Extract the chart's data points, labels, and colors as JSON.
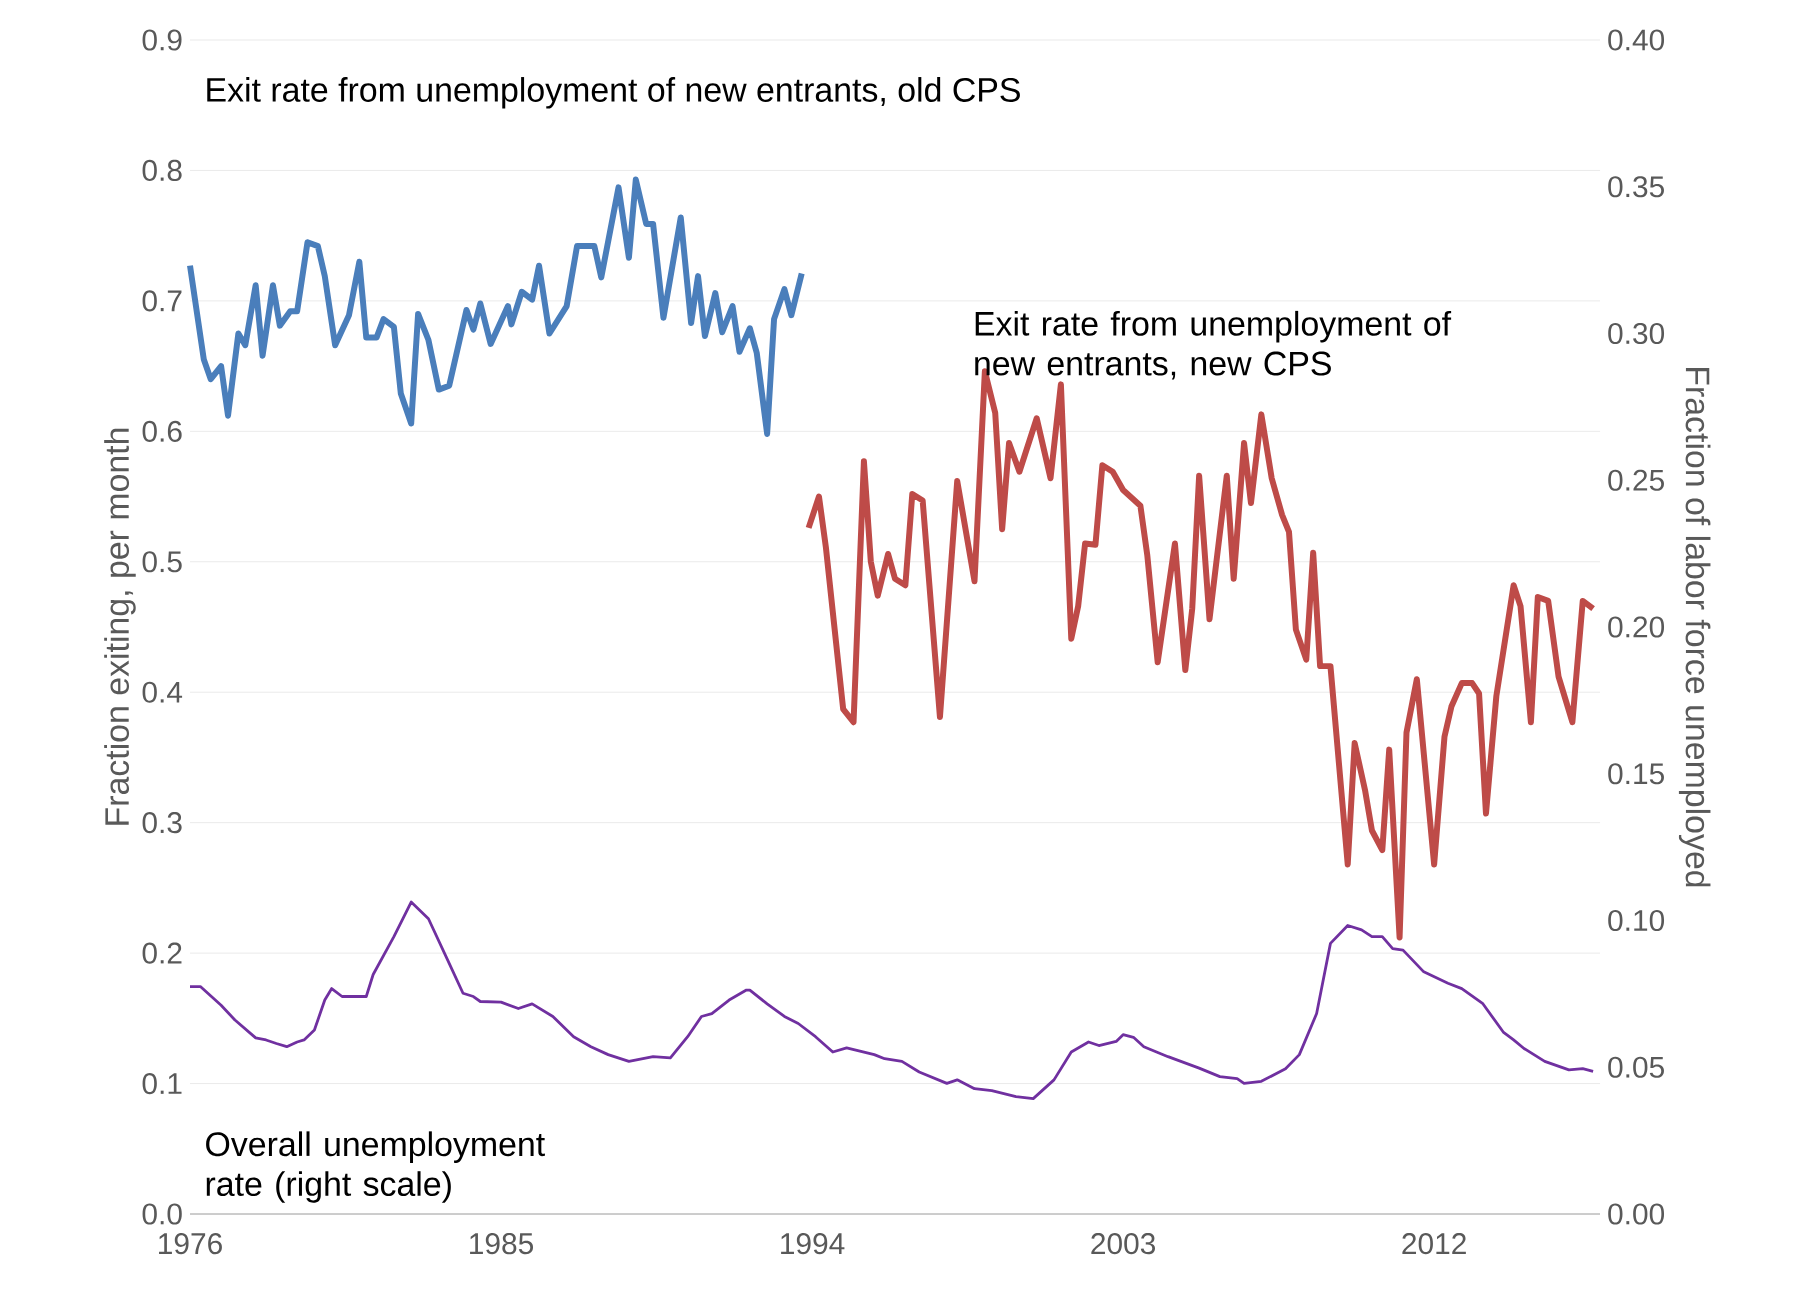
{
  "chart_data": {
    "type": "line",
    "ylabel": "Fraction exiting, per month",
    "y2label": "Fraction of labor force unemployed",
    "xlim": [
      1976,
      2016.8
    ],
    "xticks": [
      1976,
      1985,
      1994,
      2003,
      2012
    ],
    "ylim": [
      0,
      0.9
    ],
    "yticks": [
      {
        "value": 0,
        "label": "0.0"
      },
      {
        "value": 0.1,
        "label": "0.1"
      },
      {
        "value": 0.2,
        "label": "0.2"
      },
      {
        "value": 0.3,
        "label": "0.3"
      },
      {
        "value": 0.4,
        "label": "0.4"
      },
      {
        "value": 0.5,
        "label": "0.5"
      },
      {
        "value": 0.6,
        "label": "0.6"
      },
      {
        "value": 0.7,
        "label": "0.7"
      },
      {
        "value": 0.8,
        "label": "0.8"
      },
      {
        "value": 0.9,
        "label": "0.9"
      }
    ],
    "y2lim": [
      0,
      0.4
    ],
    "y2ticks": [
      {
        "value": 0,
        "label": "0.00"
      },
      {
        "value": 0.05,
        "label": "0.05"
      },
      {
        "value": 0.1,
        "label": "0.10"
      },
      {
        "value": 0.15,
        "label": "0.15"
      },
      {
        "value": 0.2,
        "label": "0.20"
      },
      {
        "value": 0.25,
        "label": "0.25"
      },
      {
        "value": 0.3,
        "label": "0.30"
      },
      {
        "value": 0.35,
        "label": "0.35"
      },
      {
        "value": 0.4,
        "label": "0.40"
      }
    ],
    "grid": "y",
    "legend": false,
    "marker": "none",
    "line_style": "solid",
    "series": [
      {
        "name": "Exit rate from unemployment of new entrants, old CPS",
        "color": "#4a7ebb",
        "x": [
          1976.0,
          1976.4,
          1976.6,
          1976.9,
          1977.1,
          1977.4,
          1977.6,
          1977.9,
          1978.1,
          1978.4,
          1978.6,
          1978.9,
          1979.1,
          1979.4,
          1979.7,
          1979.9,
          1980.2,
          1980.6,
          1980.9,
          1981.1,
          1981.4,
          1981.6,
          1981.9,
          1982.1,
          1982.4,
          1982.6,
          1982.9,
          1983.2,
          1983.5,
          1984.0,
          1984.2,
          1984.4,
          1984.7,
          1985.2,
          1985.3,
          1985.6,
          1985.9,
          1986.1,
          1986.4,
          1986.9,
          1987.2,
          1987.7,
          1987.9,
          1988.4,
          1988.7,
          1988.9,
          1989.2,
          1989.4,
          1989.7,
          1990.2,
          1990.5,
          1990.7,
          1990.9,
          1991.2,
          1991.4,
          1991.7,
          1991.9,
          1992.2,
          1992.4,
          1992.7,
          1992.9,
          1993.2,
          1993.4,
          1993.7
        ],
        "values": [
          0.727,
          0.655,
          0.64,
          0.65,
          0.612,
          0.675,
          0.666,
          0.712,
          0.658,
          0.712,
          0.681,
          0.692,
          0.692,
          0.745,
          0.742,
          0.719,
          0.666,
          0.689,
          0.73,
          0.672,
          0.672,
          0.686,
          0.68,
          0.629,
          0.606,
          0.69,
          0.67,
          0.632,
          0.635,
          0.693,
          0.678,
          0.698,
          0.667,
          0.696,
          0.682,
          0.707,
          0.701,
          0.727,
          0.675,
          0.696,
          0.742,
          0.742,
          0.718,
          0.787,
          0.733,
          0.793,
          0.759,
          0.759,
          0.687,
          0.764,
          0.683,
          0.719,
          0.673,
          0.706,
          0.676,
          0.696,
          0.661,
          0.679,
          0.66,
          0.598,
          0.686,
          0.709,
          0.689,
          0.721
        ]
      },
      {
        "name": "Exit rate from unemployment of new entrants, new CPS",
        "color": "#be4b48",
        "x": [
          1993.9,
          1994.2,
          1994.4,
          1994.9,
          1995.2,
          1995.5,
          1995.7,
          1995.9,
          1996.2,
          1996.4,
          1996.7,
          1996.9,
          1997.2,
          1997.7,
          1998.2,
          1998.7,
          1999.0,
          1999.3,
          1999.5,
          1999.7,
          2000.0,
          2000.5,
          2000.9,
          2001.2,
          2001.5,
          2001.7,
          2001.9,
          2002.2,
          2002.4,
          2002.7,
          2003.0,
          2003.5,
          2003.7,
          2004.0,
          2004.5,
          2004.8,
          2005.0,
          2005.2,
          2005.5,
          2006.0,
          2006.2,
          2006.5,
          2006.7,
          2007.0,
          2007.3,
          2007.6,
          2007.8,
          2008.0,
          2008.3,
          2008.5,
          2008.7,
          2009.0,
          2009.5,
          2009.7,
          2010.0,
          2010.2,
          2010.5,
          2010.7,
          2011.0,
          2011.2,
          2011.5,
          2012.0,
          2012.3,
          2012.5,
          2012.8,
          2013.1,
          2013.3,
          2013.5,
          2013.8,
          2014.3,
          2014.5,
          2014.8,
          2015.0,
          2015.3,
          2015.6,
          2016.0,
          2016.3,
          2016.6
        ],
        "values": [
          0.526,
          0.55,
          0.511,
          0.387,
          0.377,
          0.577,
          0.5,
          0.474,
          0.506,
          0.487,
          0.482,
          0.552,
          0.547,
          0.381,
          0.562,
          0.485,
          0.646,
          0.614,
          0.525,
          0.591,
          0.569,
          0.61,
          0.564,
          0.636,
          0.441,
          0.466,
          0.514,
          0.513,
          0.574,
          0.569,
          0.555,
          0.543,
          0.505,
          0.423,
          0.514,
          0.417,
          0.464,
          0.566,
          0.456,
          0.566,
          0.487,
          0.591,
          0.545,
          0.613,
          0.564,
          0.536,
          0.523,
          0.448,
          0.425,
          0.507,
          0.42,
          0.42,
          0.268,
          0.361,
          0.325,
          0.294,
          0.279,
          0.356,
          0.212,
          0.369,
          0.41,
          0.268,
          0.366,
          0.389,
          0.407,
          0.407,
          0.399,
          0.307,
          0.397,
          0.482,
          0.466,
          0.377,
          0.473,
          0.47,
          0.412,
          0.377,
          0.47,
          0.464
        ]
      },
      {
        "name": "Overall unemployment rate (right scale)",
        "color": "#7030a0",
        "axis": "y2",
        "x": [
          1976.0,
          1976.3,
          1976.9,
          1977.3,
          1977.9,
          1978.2,
          1978.5,
          1978.8,
          1979.1,
          1979.3,
          1979.6,
          1979.9,
          1980.1,
          1980.4,
          1981.1,
          1981.3,
          1981.9,
          1982.4,
          1982.9,
          1983.5,
          1983.9,
          1984.2,
          1984.4,
          1985.0,
          1985.5,
          1985.9,
          1986.5,
          1987.1,
          1987.6,
          1988.1,
          1988.7,
          1989.4,
          1989.9,
          1990.4,
          1990.8,
          1991.1,
          1991.6,
          1992.1,
          1992.2,
          1992.7,
          1993.2,
          1993.6,
          1994.1,
          1994.6,
          1995.0,
          1995.8,
          1996.1,
          1996.6,
          1997.1,
          1997.9,
          1998.2,
          1998.7,
          1999.2,
          1999.9,
          2000.4,
          2001.0,
          2001.5,
          2002.0,
          2002.3,
          2002.8,
          2003.0,
          2003.3,
          2003.6,
          2004.3,
          2005.2,
          2005.8,
          2006.3,
          2006.5,
          2007.0,
          2007.7,
          2008.1,
          2008.6,
          2009.0,
          2009.5,
          2009.9,
          2010.2,
          2010.5,
          2010.8,
          2011.1,
          2011.7,
          2012.4,
          2012.8,
          2013.4,
          2014.0,
          2014.3,
          2014.6,
          2015.2,
          2015.9,
          2016.3,
          2016.6
        ],
        "values": [
          0.0775,
          0.0775,
          0.0711,
          0.0661,
          0.06,
          0.0593,
          0.0581,
          0.057,
          0.0586,
          0.0593,
          0.0627,
          0.0729,
          0.0768,
          0.0741,
          0.0741,
          0.0816,
          0.0945,
          0.1063,
          0.1006,
          0.0854,
          0.0752,
          0.0741,
          0.0724,
          0.0722,
          0.07,
          0.0716,
          0.0673,
          0.0604,
          0.057,
          0.0543,
          0.052,
          0.0536,
          0.0532,
          0.0604,
          0.0673,
          0.0683,
          0.0729,
          0.0763,
          0.0763,
          0.0716,
          0.0673,
          0.0649,
          0.0604,
          0.0552,
          0.0566,
          0.0543,
          0.0529,
          0.052,
          0.0484,
          0.0445,
          0.0457,
          0.0427,
          0.042,
          0.04,
          0.0393,
          0.0457,
          0.0552,
          0.0586,
          0.0574,
          0.0588,
          0.0611,
          0.0602,
          0.057,
          0.0536,
          0.0497,
          0.0468,
          0.0461,
          0.0445,
          0.0452,
          0.0495,
          0.0543,
          0.0683,
          0.0922,
          0.0983,
          0.0968,
          0.0945,
          0.0945,
          0.0904,
          0.0899,
          0.0825,
          0.0786,
          0.0768,
          0.0718,
          0.062,
          0.0593,
          0.0564,
          0.052,
          0.0491,
          0.0495,
          0.0486
        ]
      }
    ]
  }
}
